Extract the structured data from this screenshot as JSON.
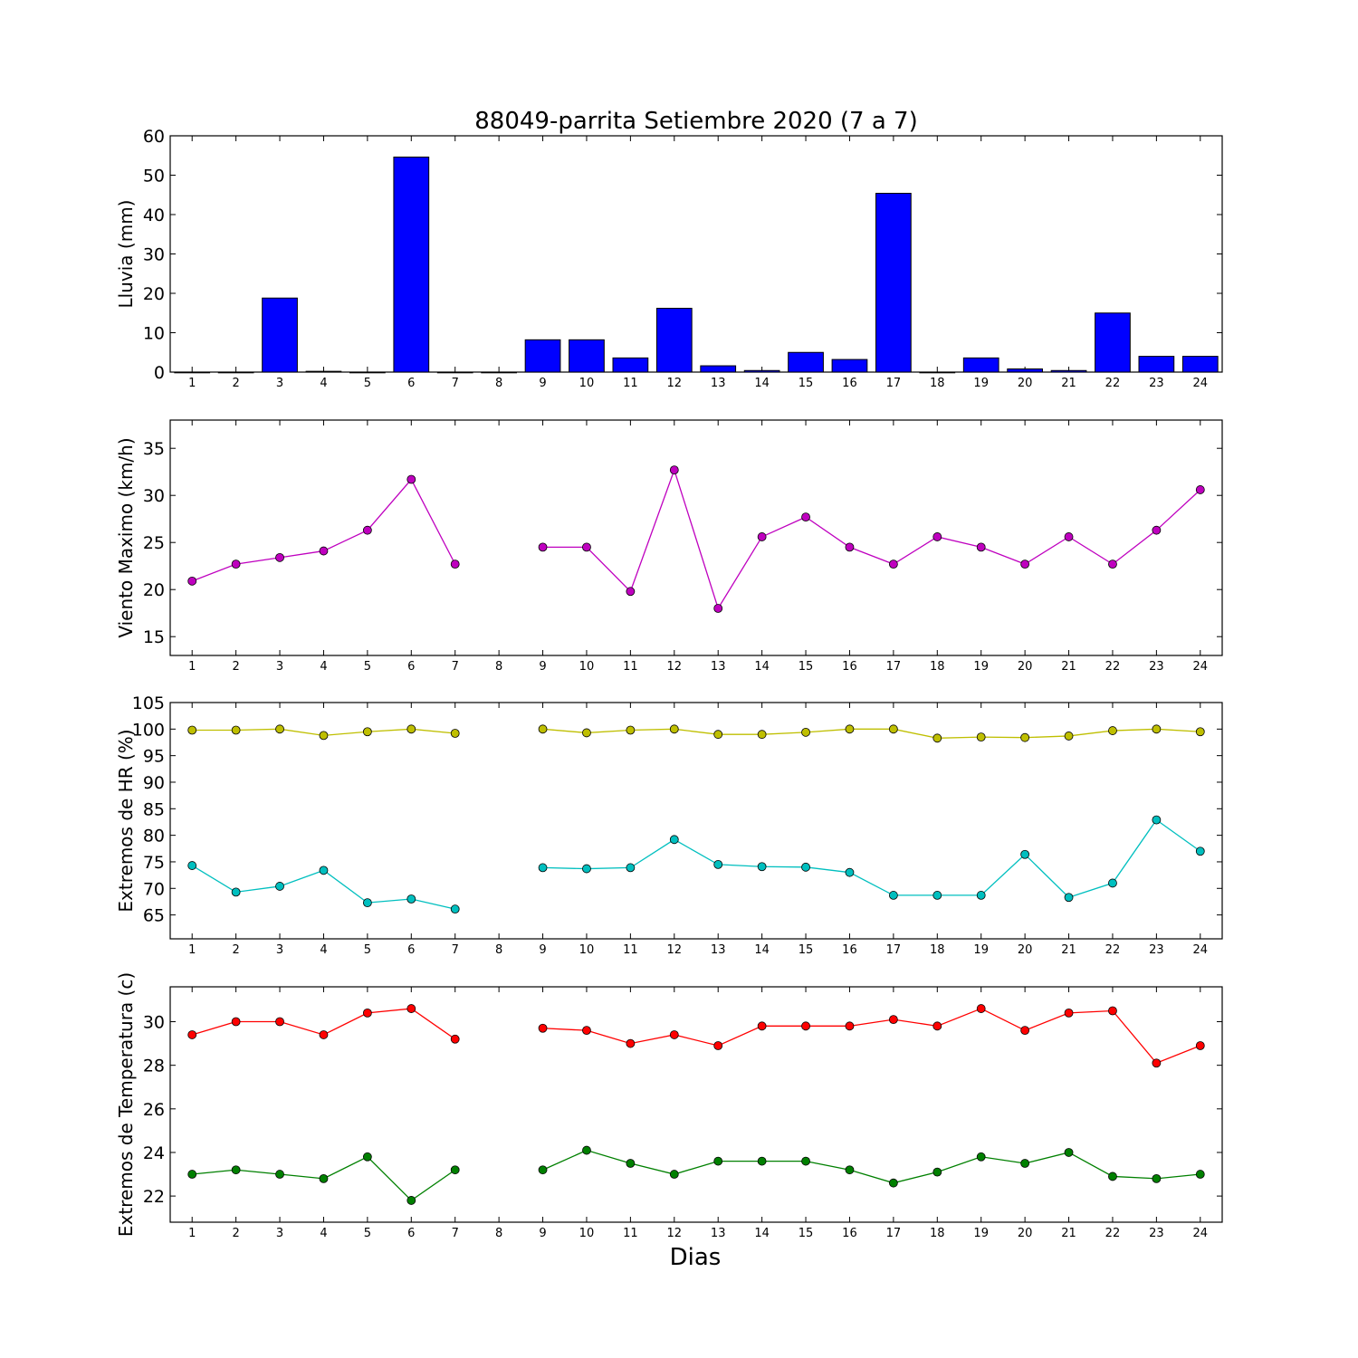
{
  "title": "88049-parrita Setiembre 2020  (7 a 7)",
  "xlabel": "Dias",
  "chart_data": [
    {
      "type": "bar",
      "ylabel": "Lluvia (mm)",
      "ylim": [
        0,
        60
      ],
      "yticks": [
        0,
        10,
        20,
        30,
        40,
        50,
        60
      ],
      "categories": [
        "1",
        "2",
        "3",
        "4",
        "5",
        "6",
        "7",
        "8",
        "9",
        "10",
        "11",
        "12",
        "13",
        "14",
        "15",
        "16",
        "17",
        "18",
        "19",
        "20",
        "21",
        "22",
        "23",
        "24"
      ],
      "series": [
        {
          "values": [
            0,
            0,
            18.8,
            0.2,
            0,
            54.6,
            0,
            0,
            8.2,
            8.2,
            3.6,
            16.2,
            1.6,
            0.4,
            5.0,
            3.2,
            45.4,
            0,
            3.6,
            0.8,
            0.4,
            15.0,
            4.0,
            4.0
          ],
          "color": "#0000ff"
        }
      ]
    },
    {
      "type": "line",
      "ylabel": "Viento Maximo (km/h)",
      "ylim": [
        13,
        38
      ],
      "yticks": [
        15,
        20,
        25,
        30,
        35
      ],
      "categories": [
        "1",
        "2",
        "3",
        "4",
        "5",
        "6",
        "7",
        "8",
        "9",
        "10",
        "11",
        "12",
        "13",
        "14",
        "15",
        "16",
        "17",
        "18",
        "19",
        "20",
        "21",
        "22",
        "23",
        "24"
      ],
      "series": [
        {
          "values": [
            20.9,
            22.7,
            23.4,
            24.1,
            26.3,
            31.7,
            22.7,
            null,
            24.5,
            24.5,
            19.8,
            32.7,
            18.0,
            25.6,
            27.7,
            24.5,
            22.7,
            25.6,
            24.5,
            22.7,
            25.6,
            22.7,
            26.3,
            30.6
          ],
          "color": "#bf00bf"
        }
      ]
    },
    {
      "type": "line",
      "ylabel": "Extremos de HR (%)",
      "ylim": [
        60.5,
        105
      ],
      "yticks": [
        65,
        70,
        75,
        80,
        85,
        90,
        95,
        100,
        105
      ],
      "categories": [
        "1",
        "2",
        "3",
        "4",
        "5",
        "6",
        "7",
        "8",
        "9",
        "10",
        "11",
        "12",
        "13",
        "14",
        "15",
        "16",
        "17",
        "18",
        "19",
        "20",
        "21",
        "22",
        "23",
        "24"
      ],
      "series": [
        {
          "values": [
            99.8,
            99.8,
            100.0,
            98.8,
            99.5,
            100.0,
            99.2,
            null,
            100.0,
            99.3,
            99.8,
            100.0,
            99.0,
            99.0,
            99.4,
            100.0,
            100.0,
            98.3,
            98.5,
            98.4,
            98.7,
            99.7,
            100.0,
            99.5
          ],
          "color": "#bfbf00"
        },
        {
          "values": [
            74.3,
            69.3,
            70.4,
            73.4,
            67.3,
            68.0,
            66.1,
            null,
            73.9,
            73.7,
            73.9,
            79.2,
            74.5,
            74.1,
            74.0,
            73.0,
            68.7,
            68.7,
            68.7,
            76.4,
            68.3,
            71.0,
            82.9,
            77.0
          ],
          "color": "#00bfbf"
        }
      ]
    },
    {
      "type": "line",
      "ylabel": "Extremos de Temperatura (c)",
      "ylim": [
        20.8,
        31.6
      ],
      "yticks": [
        22,
        24,
        26,
        28,
        30
      ],
      "categories": [
        "1",
        "2",
        "3",
        "4",
        "5",
        "6",
        "7",
        "8",
        "9",
        "10",
        "11",
        "12",
        "13",
        "14",
        "15",
        "16",
        "17",
        "18",
        "19",
        "20",
        "21",
        "22",
        "23",
        "24"
      ],
      "series": [
        {
          "values": [
            29.4,
            30.0,
            30.0,
            29.4,
            30.4,
            30.6,
            29.2,
            null,
            29.7,
            29.6,
            29.0,
            29.4,
            28.9,
            29.8,
            29.8,
            29.8,
            30.1,
            29.8,
            30.6,
            29.6,
            30.4,
            30.5,
            28.1,
            28.9
          ],
          "color": "#ff0000"
        },
        {
          "values": [
            23.0,
            23.2,
            23.0,
            22.8,
            23.8,
            21.8,
            23.2,
            null,
            23.2,
            24.1,
            23.5,
            23.0,
            23.6,
            23.6,
            23.6,
            23.2,
            22.6,
            23.1,
            23.8,
            23.5,
            24.0,
            22.9,
            22.8,
            23.0
          ],
          "color": "#008000"
        }
      ]
    }
  ]
}
